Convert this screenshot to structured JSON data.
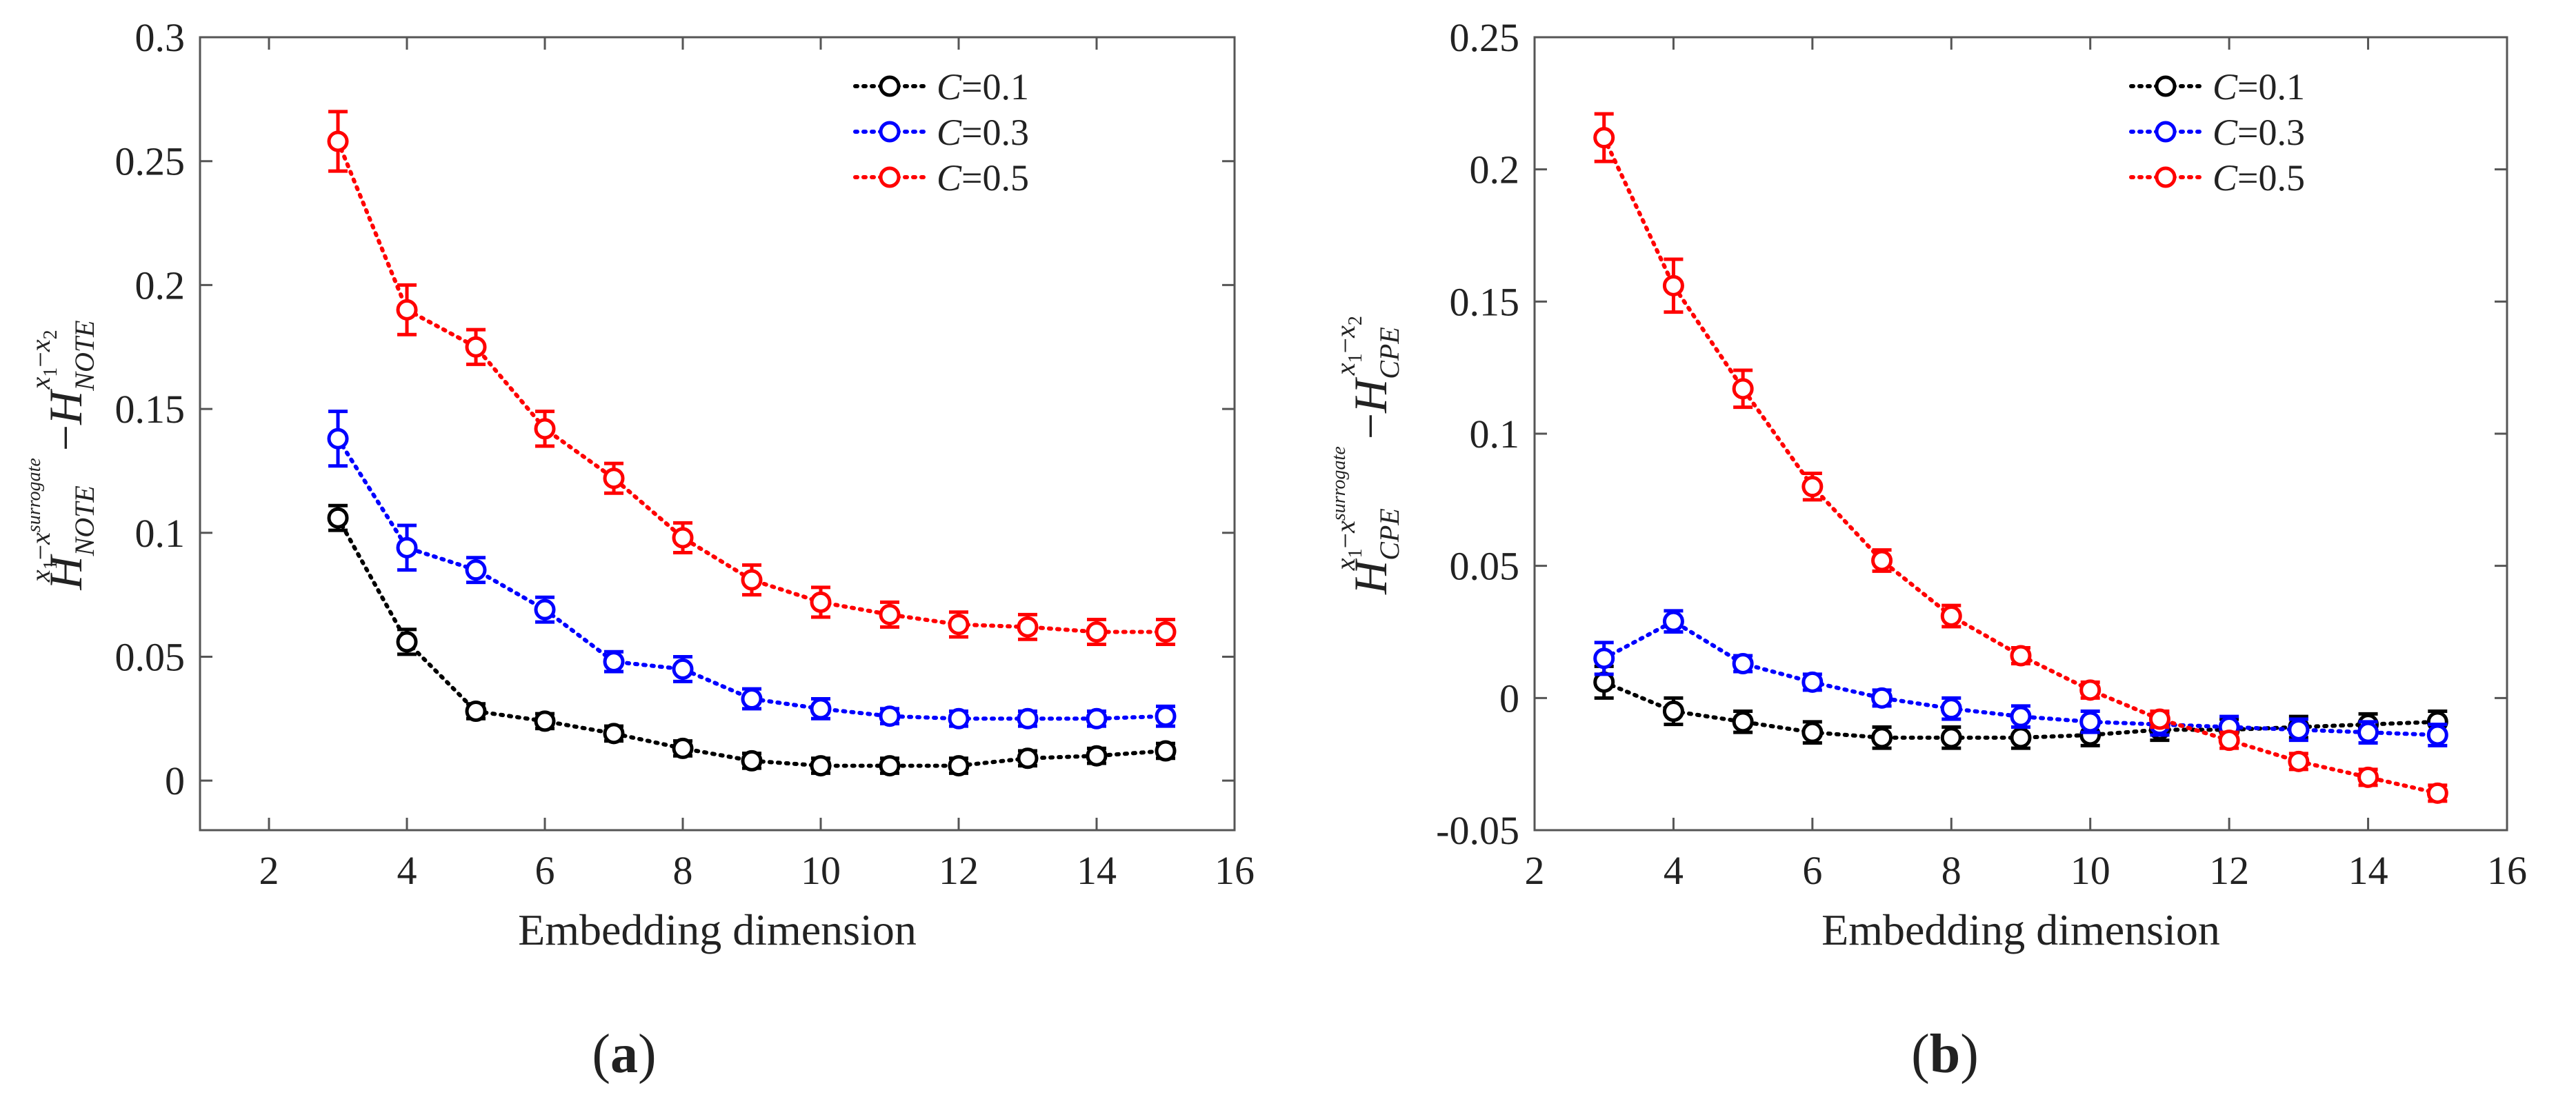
{
  "chart_data": [
    {
      "type": "line",
      "panel": "a",
      "caption": "(a)",
      "caption_letter": "a",
      "xlabel": "Embedding dimension",
      "ylabel": {
        "H1": "H",
        "sub1": "NOTE",
        "sup1_x1": "x",
        "sup1_x1_sub": "1",
        "sup1_dash": "−",
        "sup1_x2": "x",
        "sup1_x2_sub": "2",
        "sup1_surr": "surrogate",
        "minus": "−",
        "H2": "H",
        "sub2": "NOTE",
        "sup2_x1": "x",
        "sup2_x1_sub": "1",
        "sup2_dash": "−",
        "sup2_x2": "x",
        "sup2_x2_sub": "2"
      },
      "xlim": [
        1,
        16
      ],
      "ylim": [
        -0.02,
        0.3
      ],
      "xticks": [
        2,
        4,
        6,
        8,
        10,
        12,
        14,
        16
      ],
      "xtick_labels": [
        "2",
        "4",
        "6",
        "8",
        "10",
        "12",
        "14",
        "16"
      ],
      "yticks": [
        0,
        0.05,
        0.1,
        0.15,
        0.2,
        0.25,
        0.3
      ],
      "ytick_labels": [
        "0",
        "0.05",
        "0.1",
        "0.15",
        "0.2",
        "0.25",
        "0.3"
      ],
      "legend_position": "top-right",
      "x": [
        3,
        4,
        5,
        6,
        7,
        8,
        9,
        10,
        11,
        12,
        13,
        14,
        15
      ],
      "series": [
        {
          "name": "C=0.1",
          "label_var": "C",
          "label_val": "=0.1",
          "color": "#000000",
          "values": [
            0.106,
            0.056,
            0.028,
            0.024,
            0.019,
            0.013,
            0.008,
            0.006,
            0.006,
            0.006,
            0.009,
            0.01,
            0.012
          ],
          "errors": [
            0.005,
            0.005,
            0.003,
            0.003,
            0.003,
            0.003,
            0.003,
            0.003,
            0.003,
            0.003,
            0.003,
            0.003,
            0.003
          ]
        },
        {
          "name": "C=0.3",
          "label_var": "C",
          "label_val": "=0.3",
          "color": "#0000ff",
          "values": [
            0.138,
            0.094,
            0.085,
            0.069,
            0.048,
            0.045,
            0.033,
            0.029,
            0.026,
            0.025,
            0.025,
            0.025,
            0.026
          ],
          "errors": [
            0.011,
            0.009,
            0.005,
            0.005,
            0.004,
            0.005,
            0.004,
            0.004,
            0.003,
            0.003,
            0.003,
            0.003,
            0.004
          ]
        },
        {
          "name": "C=0.5",
          "label_var": "C",
          "label_val": "=0.5",
          "color": "#ff0000",
          "values": [
            0.258,
            0.19,
            0.175,
            0.142,
            0.122,
            0.098,
            0.081,
            0.072,
            0.067,
            0.063,
            0.062,
            0.06,
            0.06
          ],
          "errors": [
            0.012,
            0.01,
            0.007,
            0.007,
            0.006,
            0.006,
            0.006,
            0.006,
            0.005,
            0.005,
            0.005,
            0.005,
            0.005
          ]
        }
      ]
    },
    {
      "type": "line",
      "panel": "b",
      "caption": "(b)",
      "caption_letter": "b",
      "xlabel": "Embedding dimension",
      "ylabel": {
        "H1": "H",
        "sub1": "CPE",
        "sup1_x1": "x",
        "sup1_x1_sub": "1",
        "sup1_dash": "−",
        "sup1_x2": "x",
        "sup1_x2_sub": "2",
        "sup1_surr": "surrogate",
        "minus": "−",
        "H2": "H",
        "sub2": "CPE",
        "sup2_x1": "x",
        "sup2_x1_sub": "1",
        "sup2_dash": "−",
        "sup2_x2": "x",
        "sup2_x2_sub": "2"
      },
      "xlim": [
        2,
        16
      ],
      "ylim": [
        -0.05,
        0.25
      ],
      "xticks": [
        2,
        4,
        6,
        8,
        10,
        12,
        14,
        16
      ],
      "xtick_labels": [
        "2",
        "4",
        "6",
        "8",
        "10",
        "12",
        "14",
        "16"
      ],
      "yticks": [
        -0.05,
        0,
        0.05,
        0.1,
        0.15,
        0.2,
        0.25
      ],
      "ytick_labels": [
        "-0.05",
        "0",
        "0.05",
        "0.1",
        "0.15",
        "0.2",
        "0.25"
      ],
      "legend_position": "top-right",
      "x": [
        3,
        4,
        5,
        6,
        7,
        8,
        9,
        10,
        11,
        12,
        13,
        14,
        15
      ],
      "series": [
        {
          "name": "C=0.1",
          "label_var": "C",
          "label_val": "=0.1",
          "color": "#000000",
          "values": [
            0.006,
            -0.005,
            -0.009,
            -0.013,
            -0.015,
            -0.015,
            -0.015,
            -0.014,
            -0.012,
            -0.012,
            -0.011,
            -0.01,
            -0.009
          ],
          "errors": [
            0.006,
            0.005,
            0.004,
            0.004,
            0.004,
            0.004,
            0.004,
            0.004,
            0.004,
            0.004,
            0.004,
            0.004,
            0.004
          ]
        },
        {
          "name": "C=0.3",
          "label_var": "C",
          "label_val": "=0.3",
          "color": "#0000ff",
          "values": [
            0.015,
            0.029,
            0.013,
            0.006,
            0.0,
            -0.004,
            -0.007,
            -0.009,
            -0.01,
            -0.011,
            -0.012,
            -0.013,
            -0.014
          ],
          "errors": [
            0.006,
            0.004,
            0.003,
            0.003,
            0.003,
            0.004,
            0.004,
            0.004,
            0.004,
            0.004,
            0.004,
            0.004,
            0.004
          ]
        },
        {
          "name": "C=0.5",
          "label_var": "C",
          "label_val": "=0.5",
          "color": "#ff0000",
          "values": [
            0.212,
            0.156,
            0.117,
            0.08,
            0.052,
            0.031,
            0.016,
            0.003,
            -0.008,
            -0.016,
            -0.024,
            -0.03,
            -0.036
          ],
          "errors": [
            0.009,
            0.01,
            0.007,
            0.005,
            0.004,
            0.004,
            0.003,
            0.003,
            0.003,
            0.003,
            0.003,
            0.003,
            0.003
          ]
        }
      ]
    }
  ]
}
